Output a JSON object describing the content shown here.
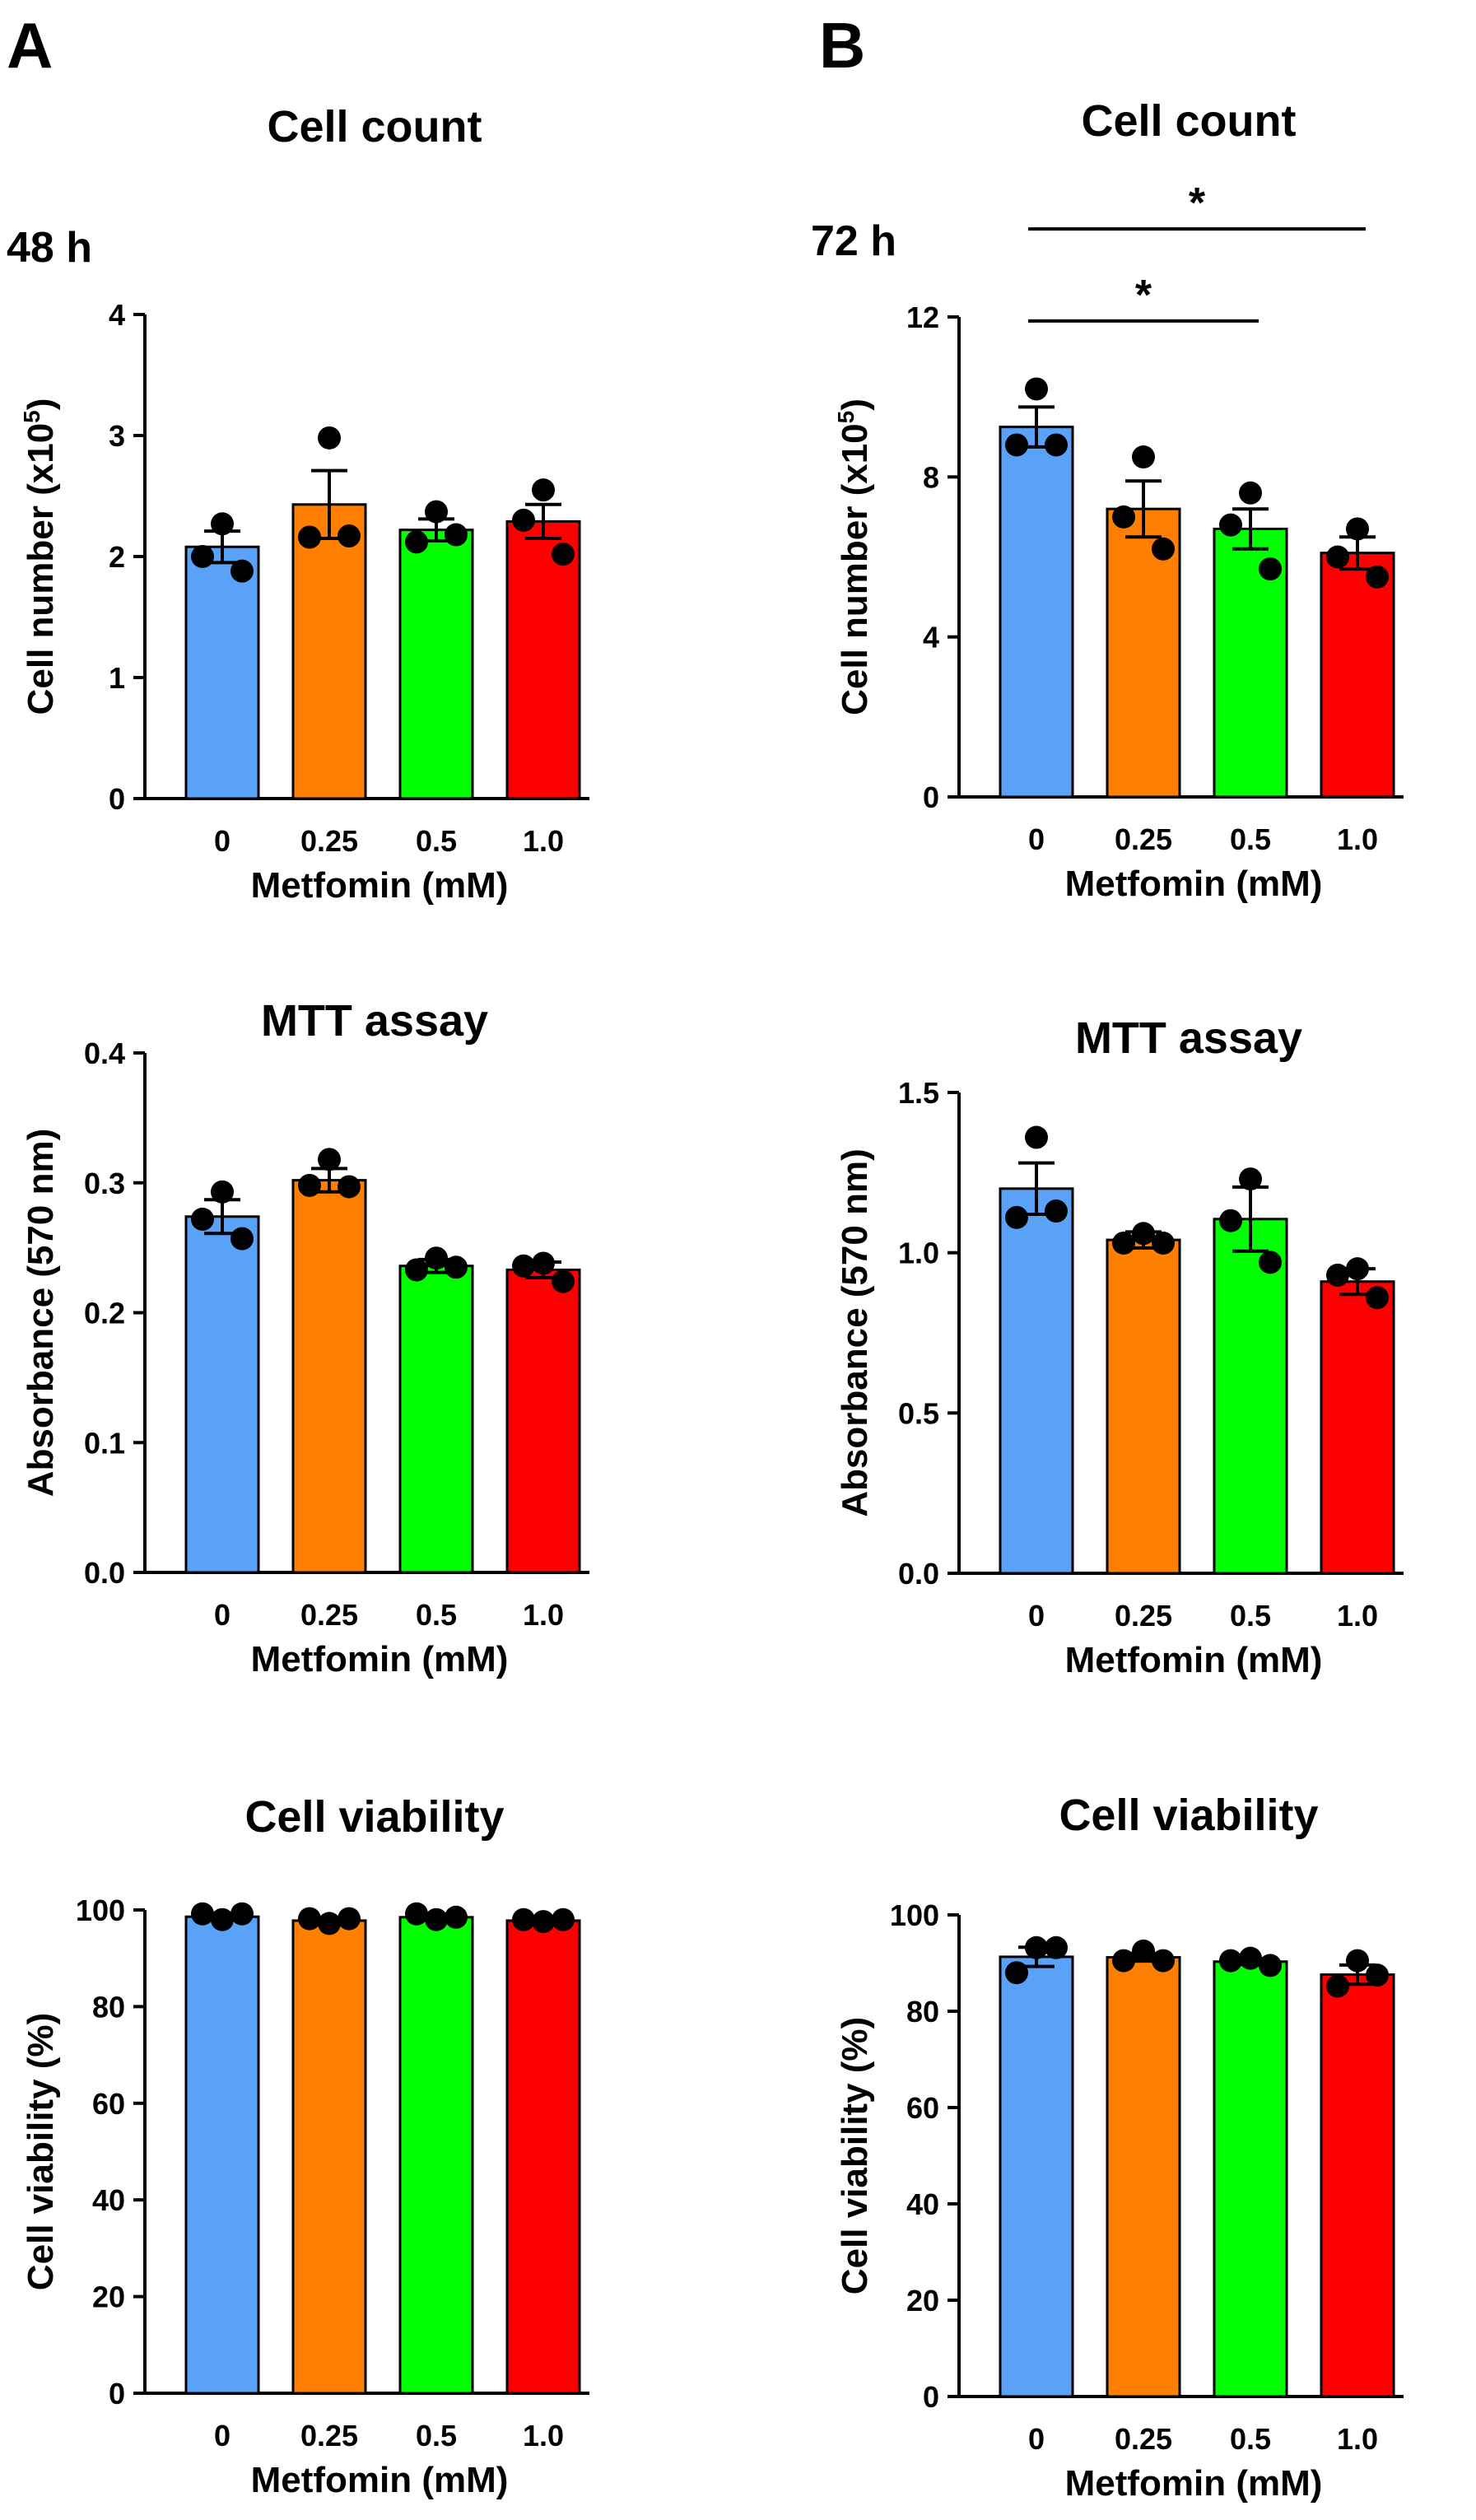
{
  "panel_labels": {
    "a": "A",
    "b": "B"
  },
  "time_labels": {
    "a": "48 h",
    "b": "72 h"
  },
  "colors": {
    "c0": "#5aa1f8",
    "c1": "#ff8000",
    "c2": "#00ff00",
    "c3": "#ff0000",
    "axis": "#000000"
  },
  "chart_data": [
    {
      "id": "a1",
      "type": "bar",
      "title": "Cell count",
      "xlabel": "Metfomin (mM)",
      "ylabel": "Cell number (x10",
      "ylabel_sup": "5",
      "ylabel_end": ")",
      "categories": [
        "0",
        "0.25",
        "0.5",
        "1.0"
      ],
      "values": [
        2.08,
        2.43,
        2.22,
        2.29
      ],
      "errors": [
        0.13,
        0.28,
        0.09,
        0.14
      ],
      "points": [
        [
          2.27,
          2.0,
          1.88
        ],
        [
          2.98,
          2.16,
          2.17
        ],
        [
          2.37,
          2.12,
          2.18
        ],
        [
          2.55,
          2.3,
          2.02
        ]
      ],
      "ylim": [
        0,
        4
      ],
      "yticks": [
        "0",
        "1",
        "2",
        "3",
        "4"
      ],
      "ytick_values": [
        0,
        1,
        2,
        3,
        4
      ],
      "significance": []
    },
    {
      "id": "b1",
      "type": "bar",
      "title": "Cell count",
      "xlabel": "Metfomin (mM)",
      "ylabel": "Cell number (x10",
      "ylabel_sup": "5",
      "ylabel_end": ")",
      "categories": [
        "0",
        "0.25",
        "0.5",
        "1.0"
      ],
      "values": [
        9.25,
        7.2,
        6.7,
        6.1
      ],
      "errors": [
        0.5,
        0.7,
        0.5,
        0.4
      ],
      "points": [
        [
          10.2,
          8.8,
          8.8
        ],
        [
          8.5,
          7.0,
          6.2
        ],
        [
          7.6,
          6.8,
          5.7
        ],
        [
          6.7,
          6.0,
          5.5
        ]
      ],
      "ylim": [
        0,
        12
      ],
      "yticks": [
        "0",
        "4",
        "8",
        "12"
      ],
      "ytick_values": [
        0,
        4,
        8,
        12
      ],
      "significance": [
        {
          "from": 0,
          "to": 2,
          "label": "*",
          "level": 11.9
        },
        {
          "from": 0,
          "to": 3,
          "label": "*",
          "level": 14.2
        }
      ]
    },
    {
      "id": "a2",
      "type": "bar",
      "title": "MTT assay",
      "xlabel": "Metfomin (mM)",
      "ylabel": "Absorbance (570 nm)",
      "categories": [
        "0",
        "0.25",
        "0.5",
        "1.0"
      ],
      "values": [
        0.274,
        0.302,
        0.236,
        0.233
      ],
      "errors": [
        0.013,
        0.009,
        0.005,
        0.006
      ],
      "points": [
        [
          0.293,
          0.272,
          0.257
        ],
        [
          0.318,
          0.298,
          0.297
        ],
        [
          0.242,
          0.233,
          0.235
        ],
        [
          0.238,
          0.236,
          0.224
        ]
      ],
      "ylim": [
        0,
        0.4
      ],
      "yticks": [
        "0.0",
        "0.1",
        "0.2",
        "0.3",
        "0.4"
      ],
      "ytick_values": [
        0,
        0.1,
        0.2,
        0.3,
        0.4
      ],
      "significance": []
    },
    {
      "id": "b2",
      "type": "bar",
      "title": "MTT assay",
      "xlabel": "Metfomin (mM)",
      "ylabel": "Absorbance (570 nm)",
      "categories": [
        "0",
        "0.25",
        "0.5",
        "1.0"
      ],
      "values": [
        1.2,
        1.04,
        1.105,
        0.91
      ],
      "errors": [
        0.08,
        0.025,
        0.1,
        0.04
      ],
      "points": [
        [
          1.36,
          1.11,
          1.13
        ],
        [
          1.06,
          1.03,
          1.03
        ],
        [
          1.23,
          1.1,
          0.97
        ],
        [
          0.95,
          0.93,
          0.86
        ]
      ],
      "ylim": [
        0,
        1.5
      ],
      "yticks": [
        "0.0",
        "0.5",
        "1.0",
        "1.5"
      ],
      "ytick_values": [
        0,
        0.5,
        1.0,
        1.5
      ],
      "significance": []
    },
    {
      "id": "a3",
      "type": "bar",
      "title": "Cell viability",
      "xlabel": "Metfomin (mM)",
      "ylabel": "Cell viability (%)",
      "categories": [
        "0",
        "0.25",
        "0.5",
        "1.0"
      ],
      "values": [
        98.6,
        97.8,
        98.5,
        97.8
      ],
      "errors": [
        0.4,
        0.4,
        0.3,
        0.2
      ],
      "points": [
        [
          98.0,
          99.2,
          99.2
        ],
        [
          97.2,
          98.2,
          98.2
        ],
        [
          98.0,
          99.2,
          98.5
        ],
        [
          97.6,
          98.0,
          98.0
        ]
      ],
      "ylim": [
        0,
        100
      ],
      "yticks": [
        "0",
        "20",
        "40",
        "60",
        "80",
        "100"
      ],
      "ytick_values": [
        0,
        20,
        40,
        60,
        80,
        100
      ],
      "significance": []
    },
    {
      "id": "b3",
      "type": "bar",
      "title": "Cell viability",
      "xlabel": "Metfomin (mM)",
      "ylabel": "Cell viability (%)",
      "categories": [
        "0",
        "0.25",
        "0.5",
        "1.0"
      ],
      "values": [
        91.3,
        91.2,
        90.3,
        87.6
      ],
      "errors": [
        2.0,
        0.8,
        0.6,
        2.0
      ],
      "points": [
        [
          93.2,
          88.0,
          93.2
        ],
        [
          92.5,
          90.5,
          90.5
        ],
        [
          91.0,
          90.5,
          89.5
        ],
        [
          90.5,
          85.2,
          87.5
        ]
      ],
      "ylim": [
        0,
        100
      ],
      "yticks": [
        "0",
        "20",
        "40",
        "60",
        "80",
        "100"
      ],
      "ytick_values": [
        0,
        20,
        40,
        60,
        80,
        100
      ],
      "significance": []
    }
  ]
}
